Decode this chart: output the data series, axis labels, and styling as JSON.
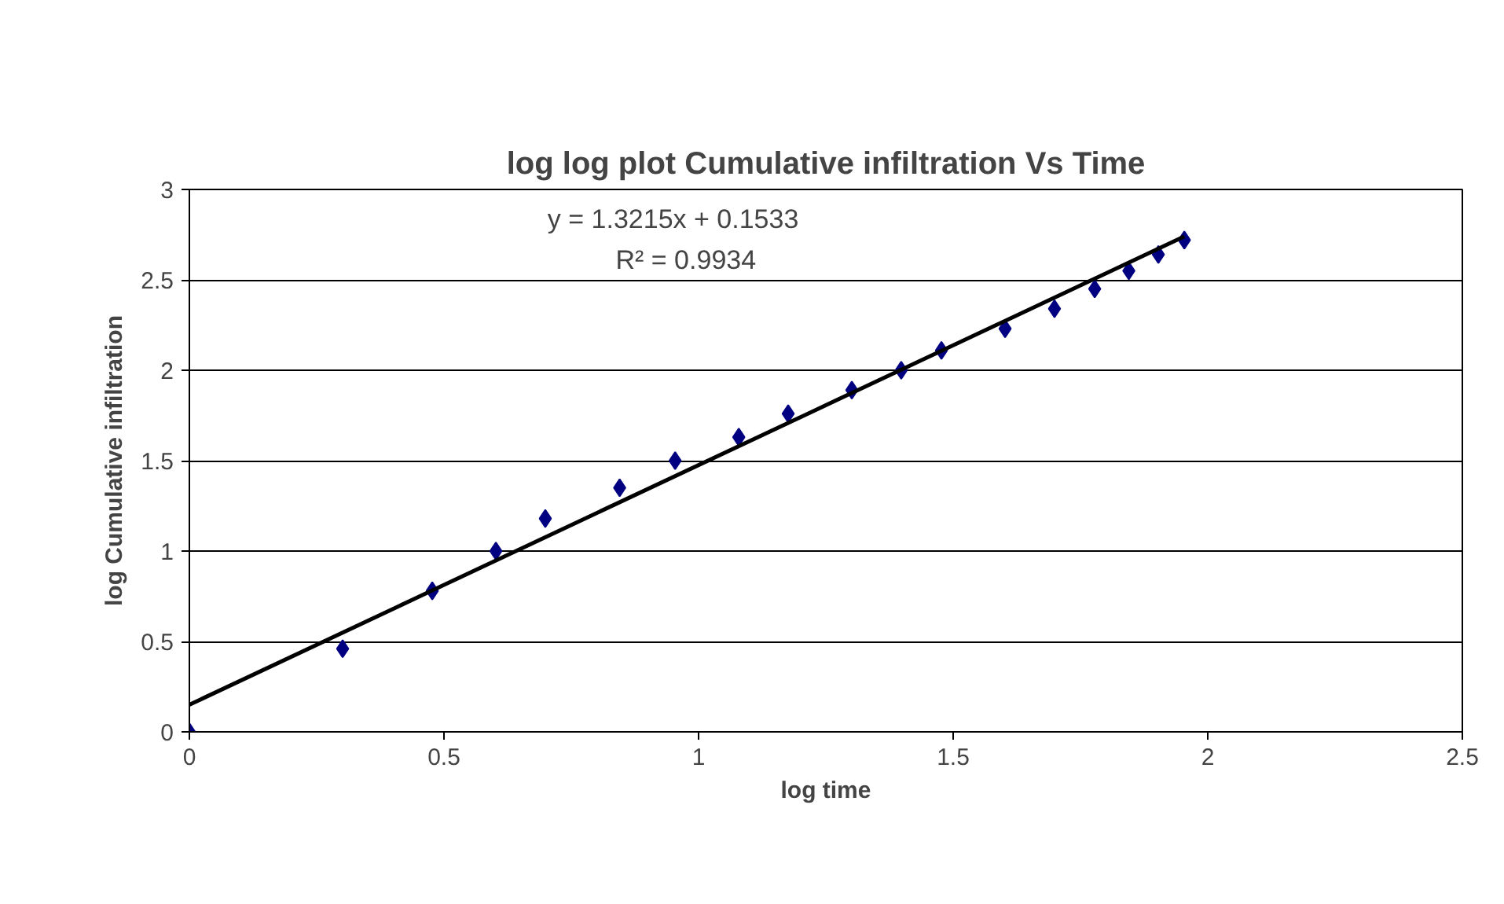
{
  "chart_data": {
    "type": "scatter",
    "title": "log log plot Cumulative infiltration Vs Time",
    "xlabel": "log time",
    "ylabel": "log Cumulative infiltration",
    "x": [
      0,
      0.301,
      0.477,
      0.602,
      0.699,
      0.845,
      0.954,
      1.079,
      1.176,
      1.301,
      1.398,
      1.477,
      1.602,
      1.699,
      1.778,
      1.845,
      1.903,
      1.954
    ],
    "series": [
      {
        "color": "#000080",
        "marker": "diamond",
        "values": [
          0,
          0.46,
          0.78,
          1.0,
          1.18,
          1.35,
          1.5,
          1.63,
          1.76,
          1.89,
          2.0,
          2.11,
          2.23,
          2.34,
          2.45,
          2.55,
          2.64,
          2.72
        ]
      },
      {
        "type": "line",
        "color": "#000000",
        "marker": "none",
        "x": [
          0,
          1.954
        ],
        "values": [
          0.15,
          2.74
        ]
      }
    ],
    "annotations": [
      "y = 1.3215x + 0.1533",
      "R² = 0.9934"
    ],
    "xlim": [
      0,
      2.5
    ],
    "ylim": [
      0,
      3
    ],
    "xticks": [
      0,
      0.5,
      1,
      1.5,
      2,
      2.5
    ],
    "yticks": [
      0,
      0.5,
      1,
      1.5,
      2,
      2.5,
      3
    ],
    "grid": "y"
  }
}
